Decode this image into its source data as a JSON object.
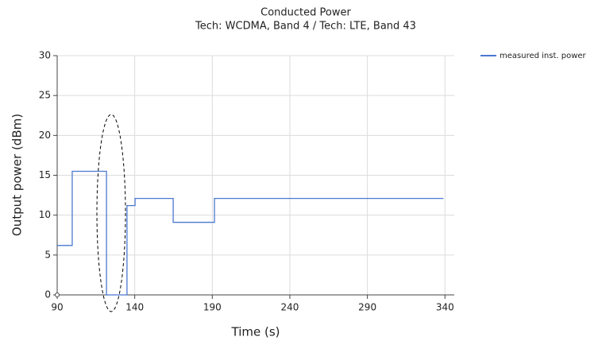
{
  "chart_data": {
    "type": "line",
    "title": "Conducted Power",
    "subtitle": "Tech: WCDMA, Band 4 / Tech: LTE, Band 43",
    "xlabel": "Time (s)",
    "ylabel": "Output power (dBm)",
    "x": [
      90,
      99.7,
      99.7,
      121.8,
      121.8,
      135,
      135,
      140.2,
      140.2,
      164.8,
      164.8,
      191.4,
      191.4,
      339
    ],
    "series": [
      {
        "name": "measured inst. power",
        "color": "#4a78d0",
        "values": [
          6.2,
          6.2,
          15.5,
          15.5,
          0,
          0,
          11.2,
          11.2,
          12.1,
          12.1,
          9.1,
          9.1,
          12.1,
          12.1
        ]
      }
    ],
    "xlim": [
      90,
      346
    ],
    "xticks": [
      90,
      140,
      190,
      240,
      290,
      340
    ],
    "ylim": [
      0,
      30
    ],
    "yticks": [
      0,
      5,
      10,
      15,
      20,
      25,
      30
    ],
    "grid": true,
    "legend": "upper right"
  }
}
